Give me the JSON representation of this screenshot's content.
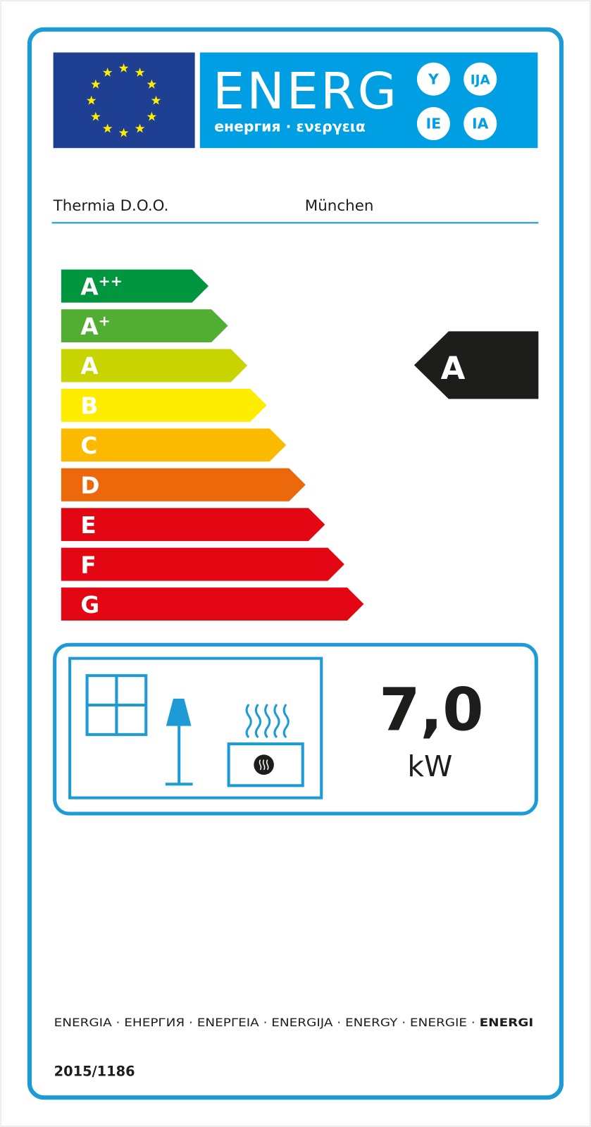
{
  "header": {
    "title": "ENERG",
    "subtitle": "енергия · ενεργεια",
    "suffixes": [
      "Y",
      "IJA",
      "IE",
      "IA"
    ],
    "flag_color": "#1f3f93",
    "star_color": "#ffed00",
    "banner_color": "#009fe3"
  },
  "supplier": {
    "name": "Thermia D.O.O.",
    "model": "München"
  },
  "scale": {
    "classes": [
      {
        "label": "A",
        "sup": "++",
        "color": "#00963f"
      },
      {
        "label": "A",
        "sup": "+",
        "color": "#52ae32"
      },
      {
        "label": "A",
        "sup": "",
        "color": "#c8d400"
      },
      {
        "label": "B",
        "sup": "",
        "color": "#ffed00"
      },
      {
        "label": "C",
        "sup": "",
        "color": "#fbba00"
      },
      {
        "label": "D",
        "sup": "",
        "color": "#eb690b"
      },
      {
        "label": "E",
        "sup": "",
        "color": "#e30613"
      },
      {
        "label": "F",
        "sup": "",
        "color": "#e30613"
      },
      {
        "label": "G",
        "sup": "",
        "color": "#e30613"
      }
    ],
    "rating": "A",
    "rating_color": "#1d1d1b"
  },
  "output": {
    "value": "7,0",
    "unit": "kW",
    "icons": [
      "window-icon",
      "lamp-icon",
      "heater-icon"
    ]
  },
  "footer": {
    "languages": "ENERGIA · ЕНЕРГИЯ · ΕΝΕΡΓΕΙΑ · ENERGIJA · ENERGY · ENERGIE · ",
    "languages_bold": "ENERGI",
    "regulation": "2015/1186"
  },
  "colors": {
    "frame": "#1d9bd7"
  }
}
